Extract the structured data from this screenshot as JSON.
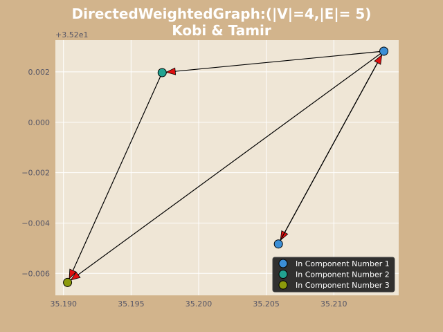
{
  "chart_data": {
    "type": "graph",
    "title_lines": [
      "DirectedWeightedGraph:(|V|=4,|E|= 5)",
      "Kobi & Tamir"
    ],
    "offset_label": "+3.52e1",
    "xlim": [
      35.1894,
      35.2148
    ],
    "ylim": [
      -0.00687,
      0.00326
    ],
    "x_ticks": [
      35.19,
      35.195,
      35.2,
      35.205,
      35.21
    ],
    "x_tick_labels": [
      "35.190",
      "35.195",
      "35.200",
      "35.205",
      "35.210"
    ],
    "y_ticks": [
      0.002,
      0.0,
      -0.002,
      -0.004,
      -0.006
    ],
    "y_tick_labels": [
      "0.002",
      "0.000",
      "−0.002",
      "−0.004",
      "−0.006"
    ],
    "grid": true,
    "nodes": [
      {
        "id": 0,
        "x": 35.1973,
        "y": 0.00197,
        "component": 2
      },
      {
        "id": 1,
        "x": 35.2137,
        "y": 0.00282,
        "component": 1
      },
      {
        "id": 2,
        "x": 35.2059,
        "y": -0.00483,
        "component": 1
      },
      {
        "id": 3,
        "x": 35.1903,
        "y": -0.00636,
        "component": 3
      }
    ],
    "edges": [
      {
        "from": 1,
        "to": 0
      },
      {
        "from": 0,
        "to": 3
      },
      {
        "from": 1,
        "to": 3
      },
      {
        "from": 1,
        "to": 2
      },
      {
        "from": 2,
        "to": 1
      }
    ],
    "legend_position": "lower-right",
    "legend": [
      {
        "label": "In Component Number 1",
        "color": "#3b8ed6"
      },
      {
        "label": "In Component Number 2",
        "color": "#22a391"
      },
      {
        "label": "In Component Number 3",
        "color": "#8c9a0c"
      }
    ],
    "colors": {
      "figure_bg": "#d2b48c",
      "axes_bg": "#efe6d6",
      "edge": "#000000",
      "arrowhead": "#e01010",
      "legend_bg": "#262626"
    }
  }
}
